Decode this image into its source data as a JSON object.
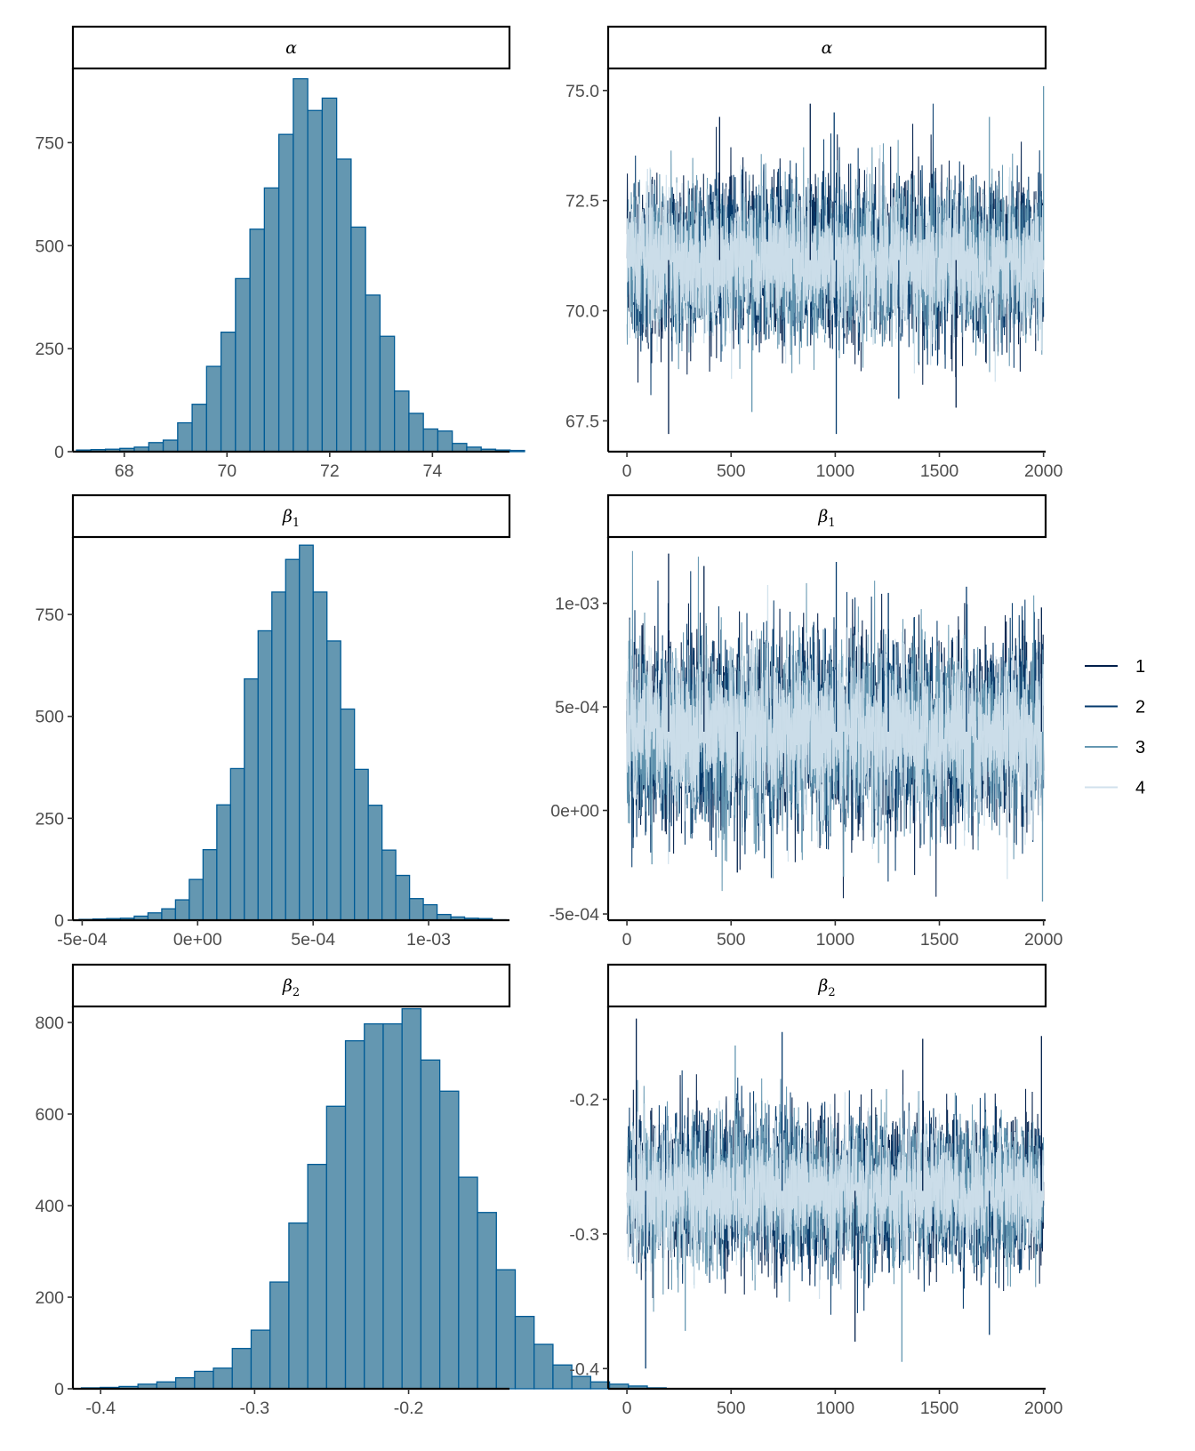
{
  "chart_data": [
    {
      "type": "bar",
      "title": "α",
      "xlabel": "",
      "ylabel": "",
      "x_bin_start": 67.07,
      "x_bin_width": 0.2814,
      "values": [
        4,
        5,
        6,
        8,
        11,
        22,
        28,
        70,
        115,
        207,
        290,
        420,
        540,
        640,
        770,
        905,
        828,
        858,
        710,
        545,
        380,
        280,
        147,
        93,
        55,
        50,
        20,
        11,
        6,
        4,
        3
      ],
      "x_ticks": [
        68,
        70,
        72,
        74
      ],
      "y_ticks": [
        0,
        250,
        500,
        750
      ],
      "xlim": [
        67.0,
        75.5
      ],
      "ylim": [
        0,
        930
      ]
    },
    {
      "type": "line",
      "title": "α",
      "xlabel": "",
      "ylabel": "",
      "series_names": [
        "1",
        "2",
        "3",
        "4"
      ],
      "x_ticks": [
        0,
        500,
        1000,
        1500,
        2000
      ],
      "y_ticks": [
        67.5,
        70.0,
        72.5,
        75.0
      ],
      "y_tick_labels": [
        "67.5",
        "70.0",
        "72.5",
        "75.0"
      ],
      "xlim": [
        -90,
        2010
      ],
      "ylim": [
        66.8,
        75.5
      ],
      "center": 71.15,
      "spread": 0.95,
      "band_sd": 0.9,
      "extremes": [
        [
          200,
          67.2
        ],
        [
          1005,
          67.2
        ],
        [
          2000,
          75.1
        ],
        [
          880,
          74.7
        ],
        [
          995,
          74.5
        ],
        [
          600,
          67.7
        ],
        [
          445,
          74.4
        ],
        [
          1305,
          68.0
        ],
        [
          1740,
          74.4
        ],
        [
          1580,
          67.8
        ]
      ]
    },
    {
      "type": "bar",
      "title": "β1",
      "xlabel": "",
      "ylabel": "",
      "x_bin_start": -0.000513,
      "x_bin_width": 5.96e-05,
      "values": [
        2,
        3,
        4,
        5,
        10,
        18,
        28,
        50,
        100,
        173,
        283,
        372,
        592,
        710,
        805,
        885,
        920,
        805,
        685,
        518,
        370,
        282,
        172,
        110,
        53,
        38,
        14,
        8,
        5,
        4,
        1
      ],
      "x_ticks": [
        -0.0005,
        0.0,
        0.0005,
        0.001
      ],
      "x_tick_labels": [
        "-5e-04",
        "0e+00",
        "5e-04",
        "1e-03"
      ],
      "y_ticks": [
        0,
        250,
        500,
        750
      ],
      "xlim": [
        -0.00054,
        0.00135
      ],
      "ylim": [
        0,
        940
      ]
    },
    {
      "type": "line",
      "title": "β1",
      "xlabel": "",
      "ylabel": "",
      "series_names": [
        "1",
        "2",
        "3",
        "4"
      ],
      "x_ticks": [
        0,
        500,
        1000,
        1500,
        2000
      ],
      "y_ticks": [
        -0.0005,
        0.0,
        0.0005,
        0.001
      ],
      "y_tick_labels": [
        "-5e-04",
        "0e+00",
        "5e-04",
        "1e-03"
      ],
      "xlim": [
        -90,
        2010
      ],
      "ylim": [
        -0.00053,
        0.00132
      ],
      "center": 0.00038,
      "spread": 0.00024,
      "band_sd": 0.00022,
      "extremes": [
        [
          200,
          0.00124
        ],
        [
          1005,
          0.0012
        ],
        [
          1995,
          -0.00044
        ],
        [
          370,
          0.00118
        ],
        [
          1630,
          0.00108
        ],
        [
          1040,
          -0.00032
        ],
        [
          530,
          -0.0003
        ],
        [
          1255,
          0.00105
        ],
        [
          120,
          -0.00026
        ],
        [
          1990,
          0.00098
        ]
      ]
    },
    {
      "type": "bar",
      "title": "β2",
      "xlabel": "",
      "ylabel": "",
      "x_bin_start": -0.4125,
      "x_bin_width": 0.01225,
      "values": [
        2,
        3,
        5,
        10,
        15,
        24,
        38,
        45,
        88,
        128,
        233,
        362,
        490,
        617,
        760,
        797,
        797,
        830,
        718,
        650,
        462,
        385,
        260,
        158,
        97,
        52,
        27,
        15,
        10,
        6,
        2
      ],
      "x_ticks": [
        -0.4,
        -0.3,
        -0.2
      ],
      "x_tick_labels": [
        "-0.4",
        "-0.3",
        "-0.2"
      ],
      "y_ticks": [
        0,
        200,
        400,
        600,
        800
      ],
      "xlim": [
        -0.418,
        -0.1345
      ],
      "ylim": [
        0,
        835
      ]
    },
    {
      "type": "line",
      "title": "β2",
      "xlabel": "",
      "ylabel": "",
      "series_names": [
        "1",
        "2",
        "3",
        "4"
      ],
      "x_ticks": [
        0,
        500,
        1000,
        1500,
        2000
      ],
      "y_ticks": [
        -0.4,
        -0.3,
        -0.2
      ],
      "y_tick_labels": [
        "-0.4",
        "-0.3",
        "-0.2"
      ],
      "xlim": [
        -90,
        2010
      ],
      "ylim": [
        -0.415,
        -0.131
      ],
      "center": -0.268,
      "spread": 0.024,
      "band_sd": 0.027,
      "extremes": [
        [
          45,
          -0.14
        ],
        [
          90,
          -0.4
        ],
        [
          1320,
          -0.395
        ],
        [
          1990,
          -0.153
        ],
        [
          745,
          -0.15
        ],
        [
          520,
          -0.16
        ],
        [
          1095,
          -0.38
        ],
        [
          1740,
          -0.375
        ],
        [
          280,
          -0.372
        ],
        [
          1420,
          -0.155
        ]
      ]
    }
  ],
  "legend": {
    "title": "",
    "position": "right",
    "items": [
      {
        "label": "1",
        "color": "#011f4b"
      },
      {
        "label": "2",
        "color": "#03396c"
      },
      {
        "label": "3",
        "color": "#6497b1"
      },
      {
        "label": "4",
        "color": "#d1e1ec"
      }
    ]
  },
  "colors": {
    "hist_fill": "#6497b1",
    "hist_edge": "#005b96"
  }
}
